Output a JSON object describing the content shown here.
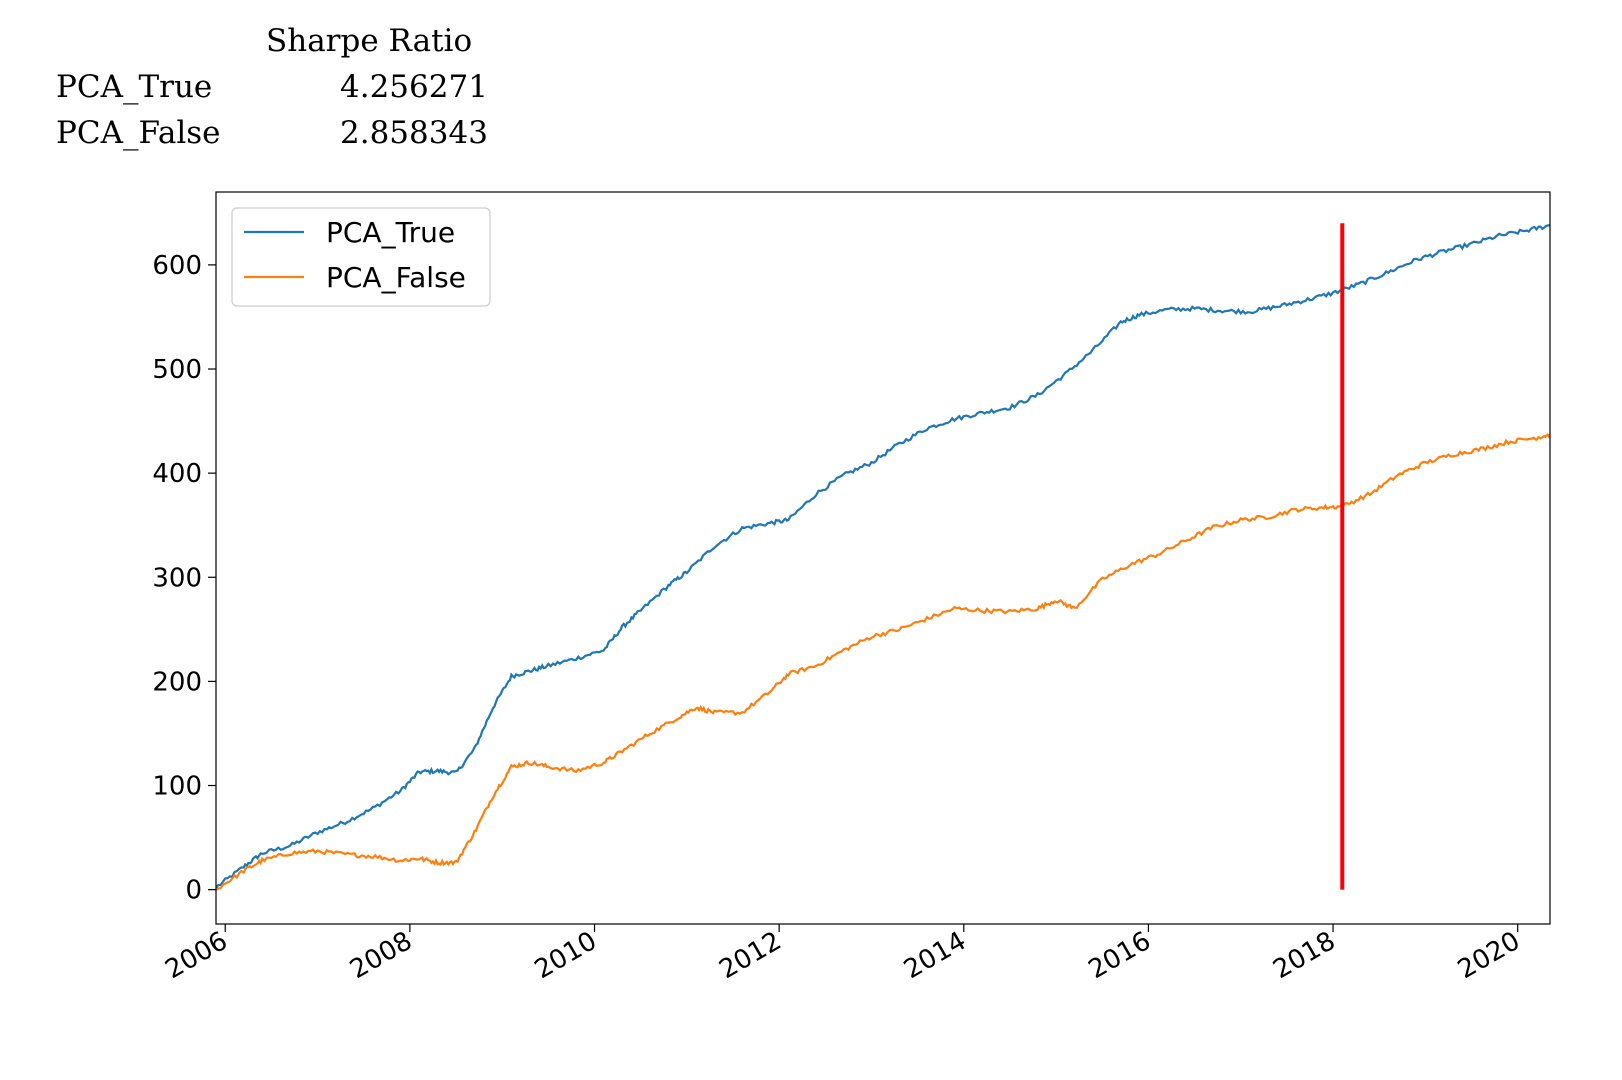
{
  "table": {
    "header": "Sharpe Ratio",
    "rows": [
      {
        "label": "PCA_True",
        "value": "4.256271"
      },
      {
        "label": "PCA_False",
        "value": "2.858343"
      }
    ]
  },
  "colors": {
    "pca_true": "#1f77b4",
    "pca_false": "#ff7f0e",
    "marker": "#ff0000"
  },
  "chart_data": {
    "type": "line",
    "title": "",
    "xlabel": "",
    "ylabel": "",
    "xlim": [
      2005.9,
      2020.35
    ],
    "ylim": [
      -33,
      670
    ],
    "xticks": [
      "2006",
      "2008",
      "2010",
      "2012",
      "2014",
      "2016",
      "2018",
      "2020"
    ],
    "yticks": [
      "0",
      "100",
      "200",
      "300",
      "400",
      "500",
      "600"
    ],
    "legend": "top-left",
    "grid": false,
    "vertical_line": {
      "x": 2018.1,
      "ymin": 0,
      "ymax": 640
    },
    "series": [
      {
        "name": "PCA_True",
        "x": [
          2005.9,
          2006.2,
          2006.4,
          2006.7,
          2007.0,
          2007.3,
          2007.6,
          2007.9,
          2008.1,
          2008.3,
          2008.5,
          2008.7,
          2008.9,
          2009.1,
          2009.3,
          2009.5,
          2009.8,
          2010.1,
          2010.3,
          2010.5,
          2010.8,
          2011.0,
          2011.3,
          2011.6,
          2011.9,
          2012.1,
          2012.4,
          2012.7,
          2013.0,
          2013.3,
          2013.6,
          2013.9,
          2014.2,
          2014.5,
          2014.8,
          2015.1,
          2015.4,
          2015.7,
          2015.9,
          2016.2,
          2016.5,
          2016.8,
          2017.1,
          2017.4,
          2017.7,
          2018.0,
          2018.3,
          2018.6,
          2018.9,
          2019.2,
          2019.5,
          2019.8,
          2020.1,
          2020.35
        ],
        "y": [
          2,
          22,
          35,
          42,
          55,
          65,
          78,
          95,
          113,
          114,
          112,
          135,
          175,
          205,
          210,
          215,
          222,
          230,
          252,
          268,
          292,
          305,
          330,
          347,
          352,
          355,
          380,
          398,
          410,
          428,
          443,
          452,
          458,
          463,
          475,
          495,
          518,
          545,
          552,
          557,
          558,
          556,
          555,
          560,
          566,
          573,
          582,
          593,
          605,
          613,
          620,
          628,
          633,
          638
        ]
      },
      {
        "name": "PCA_False",
        "x": [
          2005.9,
          2006.2,
          2006.4,
          2006.7,
          2007.0,
          2007.3,
          2007.6,
          2007.9,
          2008.1,
          2008.3,
          2008.5,
          2008.7,
          2008.9,
          2009.1,
          2009.3,
          2009.5,
          2009.8,
          2010.1,
          2010.3,
          2010.6,
          2010.9,
          2011.1,
          2011.3,
          2011.6,
          2011.9,
          2012.1,
          2012.4,
          2012.7,
          2013.0,
          2013.3,
          2013.6,
          2013.9,
          2014.2,
          2014.5,
          2014.8,
          2015.0,
          2015.2,
          2015.5,
          2015.8,
          2016.1,
          2016.4,
          2016.7,
          2017.0,
          2017.3,
          2017.6,
          2017.9,
          2018.1,
          2018.4,
          2018.7,
          2019.0,
          2019.3,
          2019.6,
          2019.9,
          2020.2,
          2020.35
        ],
        "y": [
          0,
          18,
          28,
          35,
          37,
          34,
          32,
          28,
          30,
          26,
          26,
          55,
          90,
          118,
          122,
          118,
          114,
          122,
          133,
          150,
          165,
          175,
          170,
          170,
          190,
          207,
          215,
          230,
          243,
          250,
          260,
          270,
          268,
          267,
          270,
          278,
          270,
          298,
          312,
          322,
          335,
          348,
          355,
          358,
          365,
          367,
          368,
          380,
          398,
          410,
          418,
          423,
          430,
          434,
          437
        ]
      }
    ]
  }
}
